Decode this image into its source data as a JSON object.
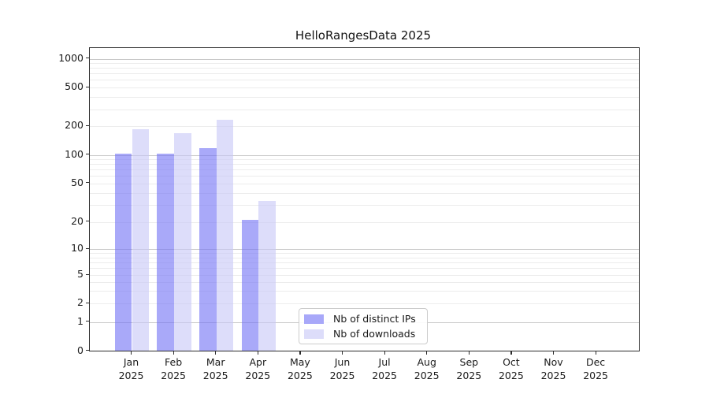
{
  "chart_data": {
    "type": "bar",
    "title": "HelloRangesData 2025",
    "yscale": "symlog",
    "grid": true,
    "ylim": [
      0,
      1300
    ],
    "categories": [
      "Jan",
      "Feb",
      "Mar",
      "Apr",
      "May",
      "Jun",
      "Jul",
      "Aug",
      "Sep",
      "Oct",
      "Nov",
      "Dec"
    ],
    "year_label": "2025",
    "ytick_values": [
      1000,
      500,
      200,
      100,
      50,
      20,
      10,
      5,
      2,
      1,
      0
    ],
    "ytick_labels": [
      "1000",
      "500",
      "200",
      "100",
      "50",
      "20",
      "10",
      "5",
      "2",
      "1",
      "0"
    ],
    "series": [
      {
        "name": "Nb of distinct IPs",
        "bar_color": "#7474f6",
        "bar_alpha": 0.62,
        "swatch_color": "#a8a8f9",
        "values": [
          103,
          103,
          118,
          21,
          null,
          null,
          null,
          null,
          null,
          null,
          null,
          null
        ]
      },
      {
        "name": "Nb of downloads",
        "bar_color": "#c8c8f7",
        "bar_alpha": 0.62,
        "swatch_color": "#ddddfa",
        "values": [
          188,
          170,
          235,
          33,
          null,
          null,
          null,
          null,
          null,
          null,
          null,
          null
        ]
      }
    ],
    "legend_position": "lower center, inside plot",
    "style": {
      "major_grid_color": "#c9c9c9",
      "minor_grid_color": "#ececec",
      "spine_color": "#2b2b2b",
      "background": "#ffffff"
    }
  }
}
